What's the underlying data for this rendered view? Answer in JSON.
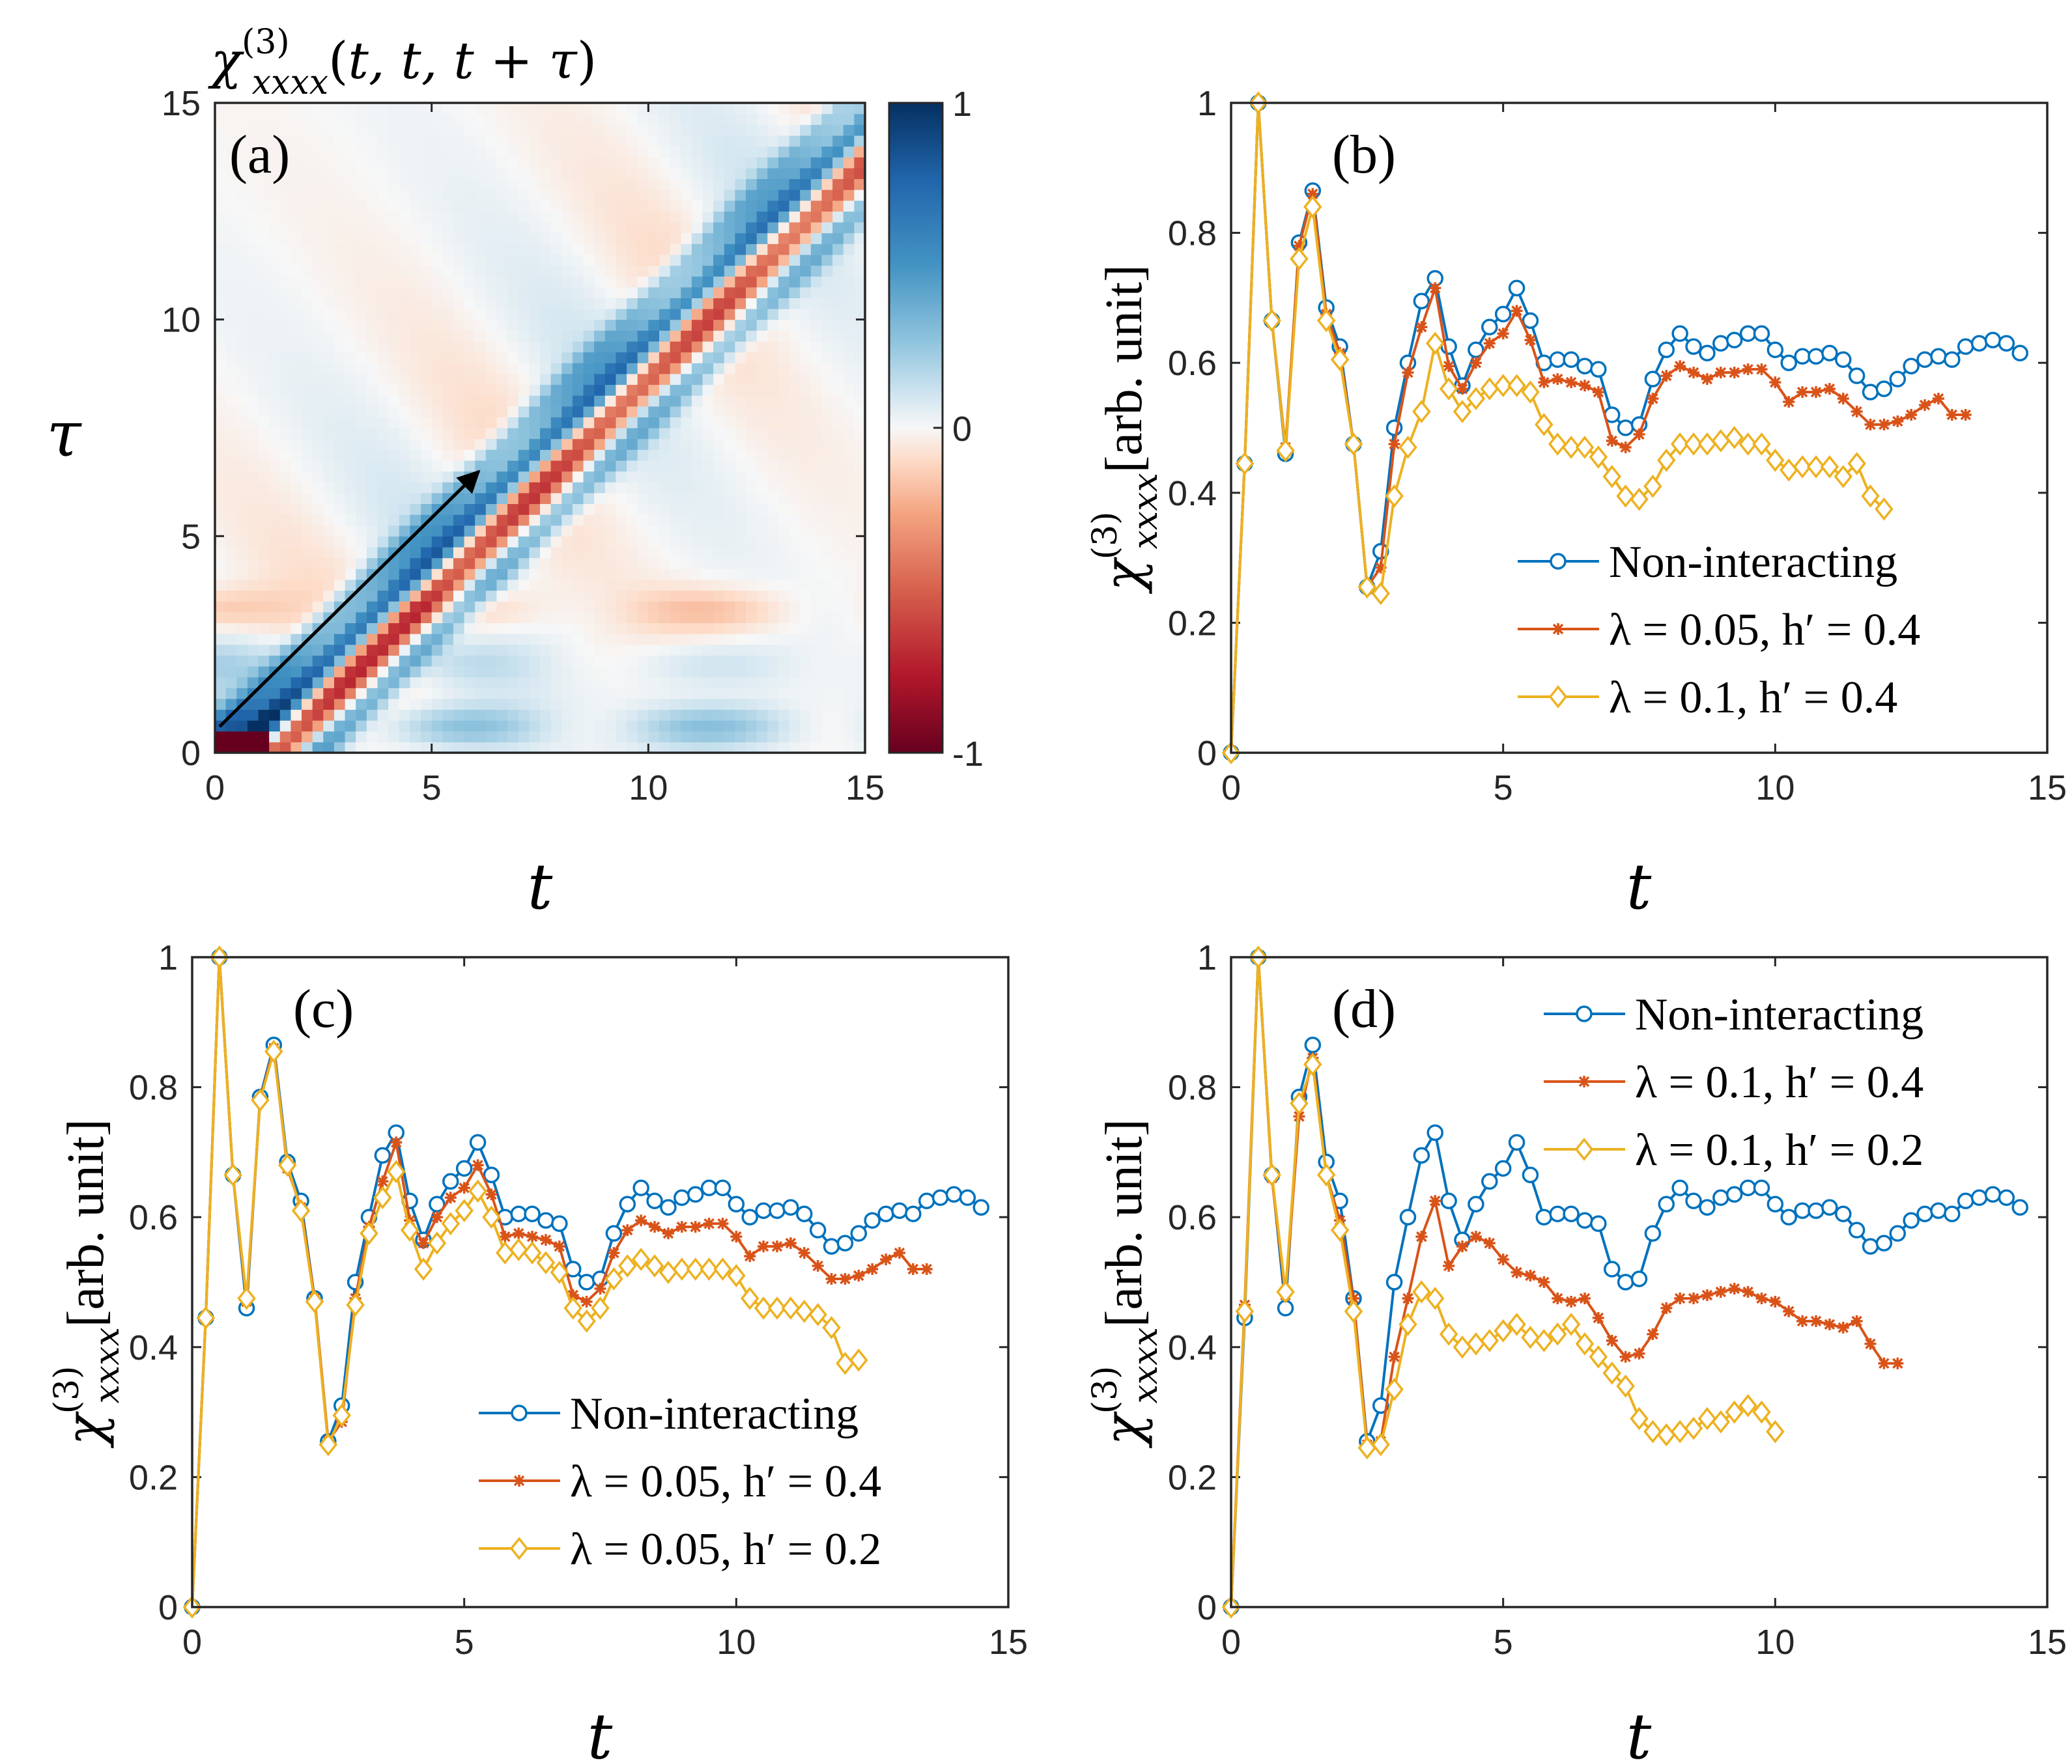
{
  "panels": {
    "a": {
      "label": "(a)",
      "title": "χ(3)xxxx(t, t, t + τ)",
      "xlabel": "t",
      "ylabel": "τ",
      "colorbar_ticks": [
        "1",
        "0",
        "-1"
      ]
    },
    "b": {
      "label": "(b)",
      "xlabel": "t",
      "ylabel": "χ(3)xxxx[arb. unit]"
    },
    "c": {
      "label": "(c)",
      "xlabel": "t",
      "ylabel": "χ(3)xxxx[arb. unit]"
    },
    "d": {
      "label": "(d)",
      "xlabel": "t",
      "ylabel": "χ(3)xxxx[arb. unit]"
    }
  },
  "colors": {
    "blue": "#0072BD",
    "orange": "#D95319",
    "yellow": "#EDB120"
  },
  "chart_data": [
    {
      "panel": "a",
      "type": "heatmap",
      "title": "χ(3)xxxx(t, t, t + τ)",
      "xlabel": "t",
      "ylabel": "τ",
      "xlim": [
        0,
        15
      ],
      "ylim": [
        0,
        15
      ],
      "xticks": [
        0,
        5,
        10,
        15
      ],
      "yticks": [
        0,
        5,
        10,
        15
      ],
      "clim": [
        -1,
        1
      ],
      "colormap": "red-white-blue",
      "features": [
        {
          "kind": "band",
          "offset": 0.4,
          "width": 0.45,
          "amplitude": 0.45
        },
        {
          "kind": "band",
          "offset": -0.45,
          "width": 0.42,
          "amplitude": 0.85
        },
        {
          "kind": "band",
          "offset": -1.4,
          "width": 0.45,
          "amplitude": -0.75
        },
        {
          "kind": "band",
          "offset": -2.4,
          "width": 0.42,
          "amplitude": 0.45
        },
        {
          "kind": "horizontal",
          "tau": 0.6,
          "amplitude": 0.3
        },
        {
          "kind": "horizontal",
          "tau": 3.3,
          "amplitude": -0.18
        },
        {
          "kind": "horizontal",
          "tau": 2.0,
          "amplitude": 0.12
        }
      ],
      "annotation": {
        "arrow_from": [
          0.1,
          0.6
        ],
        "arrow_to": [
          6.1,
          6.5
        ]
      }
    },
    {
      "panel": "b",
      "type": "line",
      "xlabel": "t",
      "ylabel": "χ(3)xxxx[arb. unit]",
      "xlim": [
        0,
        15
      ],
      "ylim": [
        0,
        1
      ],
      "xticks": [
        0,
        5,
        10,
        15
      ],
      "yticks": [
        0,
        0.2,
        0.4,
        0.6,
        0.8,
        1
      ],
      "legend_position": "lower-right",
      "series": [
        {
          "name": "Non-interacting",
          "color": "#0072BD",
          "marker": "circle",
          "y": [
            0,
            0.445,
            1,
            0.665,
            0.46,
            0.785,
            0.865,
            0.685,
            0.625,
            0.475,
            0.255,
            0.31,
            0.5,
            0.6,
            0.695,
            0.73,
            0.625,
            0.565,
            0.62,
            0.655,
            0.675,
            0.715,
            0.665,
            0.6,
            0.605,
            0.605,
            0.595,
            0.59,
            0.52,
            0.5,
            0.505,
            0.575,
            0.62,
            0.645,
            0.625,
            0.615,
            0.63,
            0.635,
            0.645,
            0.645,
            0.62,
            0.6,
            0.61,
            0.61,
            0.615,
            0.605,
            0.58,
            0.555,
            0.56,
            0.575,
            0.595,
            0.605,
            0.61,
            0.605,
            0.625,
            0.63,
            0.635,
            0.63,
            0.615
          ]
        },
        {
          "name": "λ = 0.05, h′ = 0.4",
          "color": "#D95319",
          "marker": "asterisk",
          "y": [
            0,
            0.445,
            1,
            0.665,
            0.47,
            0.78,
            0.86,
            0.675,
            0.615,
            0.475,
            0.255,
            0.285,
            0.475,
            0.585,
            0.655,
            0.715,
            0.595,
            0.56,
            0.6,
            0.63,
            0.645,
            0.68,
            0.635,
            0.57,
            0.575,
            0.57,
            0.565,
            0.555,
            0.48,
            0.47,
            0.49,
            0.545,
            0.58,
            0.595,
            0.585,
            0.575,
            0.585,
            0.585,
            0.59,
            0.59,
            0.57,
            0.54,
            0.555,
            0.555,
            0.56,
            0.545,
            0.525,
            0.505,
            0.505,
            0.51,
            0.52,
            0.535,
            0.545,
            0.52,
            0.52
          ]
        },
        {
          "name": "λ = 0.1,   h′ = 0.4",
          "color": "#EDB120",
          "marker": "diamond",
          "y": [
            0,
            0.445,
            1,
            0.665,
            0.465,
            0.76,
            0.84,
            0.665,
            0.605,
            0.475,
            0.255,
            0.245,
            0.395,
            0.47,
            0.525,
            0.63,
            0.56,
            0.525,
            0.545,
            0.56,
            0.565,
            0.565,
            0.555,
            0.505,
            0.475,
            0.47,
            0.47,
            0.455,
            0.425,
            0.395,
            0.39,
            0.41,
            0.45,
            0.475,
            0.475,
            0.475,
            0.48,
            0.485,
            0.475,
            0.475,
            0.45,
            0.435,
            0.44,
            0.44,
            0.44,
            0.425,
            0.445,
            0.395,
            0.375
          ]
        }
      ]
    },
    {
      "panel": "c",
      "type": "line",
      "xlabel": "t",
      "ylabel": "χ(3)xxxx[arb. unit]",
      "xlim": [
        0,
        15
      ],
      "ylim": [
        0,
        1
      ],
      "xticks": [
        0,
        5,
        10,
        15
      ],
      "yticks": [
        0,
        0.2,
        0.4,
        0.6,
        0.8,
        1
      ],
      "legend_position": "lower-right",
      "series": [
        {
          "name": "Non-interacting",
          "color": "#0072BD",
          "marker": "circle",
          "y": [
            0,
            0.445,
            1,
            0.665,
            0.46,
            0.785,
            0.865,
            0.685,
            0.625,
            0.475,
            0.255,
            0.31,
            0.5,
            0.6,
            0.695,
            0.73,
            0.625,
            0.565,
            0.62,
            0.655,
            0.675,
            0.715,
            0.665,
            0.6,
            0.605,
            0.605,
            0.595,
            0.59,
            0.52,
            0.5,
            0.505,
            0.575,
            0.62,
            0.645,
            0.625,
            0.615,
            0.63,
            0.635,
            0.645,
            0.645,
            0.62,
            0.6,
            0.61,
            0.61,
            0.615,
            0.605,
            0.58,
            0.555,
            0.56,
            0.575,
            0.595,
            0.605,
            0.61,
            0.605,
            0.625,
            0.63,
            0.635,
            0.63,
            0.615
          ]
        },
        {
          "name": "λ = 0.05, h′ = 0.4",
          "color": "#D95319",
          "marker": "asterisk",
          "y": [
            0,
            0.445,
            1,
            0.665,
            0.47,
            0.78,
            0.86,
            0.675,
            0.615,
            0.475,
            0.255,
            0.285,
            0.475,
            0.585,
            0.655,
            0.715,
            0.595,
            0.56,
            0.6,
            0.63,
            0.645,
            0.68,
            0.635,
            0.57,
            0.575,
            0.57,
            0.565,
            0.555,
            0.48,
            0.47,
            0.49,
            0.545,
            0.58,
            0.595,
            0.585,
            0.575,
            0.585,
            0.585,
            0.59,
            0.59,
            0.57,
            0.54,
            0.555,
            0.555,
            0.56,
            0.545,
            0.525,
            0.505,
            0.505,
            0.51,
            0.52,
            0.535,
            0.545,
            0.52,
            0.52
          ]
        },
        {
          "name": "λ = 0.05, h′ = 0.2",
          "color": "#EDB120",
          "marker": "diamond",
          "y": [
            0,
            0.445,
            1,
            0.665,
            0.475,
            0.78,
            0.855,
            0.68,
            0.61,
            0.47,
            0.25,
            0.295,
            0.465,
            0.575,
            0.63,
            0.67,
            0.58,
            0.52,
            0.56,
            0.59,
            0.61,
            0.64,
            0.6,
            0.545,
            0.55,
            0.545,
            0.53,
            0.515,
            0.46,
            0.44,
            0.46,
            0.505,
            0.525,
            0.535,
            0.525,
            0.515,
            0.52,
            0.52,
            0.52,
            0.52,
            0.51,
            0.475,
            0.46,
            0.46,
            0.46,
            0.455,
            0.45,
            0.43,
            0.375,
            0.38
          ]
        }
      ]
    },
    {
      "panel": "d",
      "type": "line",
      "xlabel": "t",
      "ylabel": "χ(3)xxxx[arb. unit]",
      "xlim": [
        0,
        15
      ],
      "ylim": [
        0,
        1
      ],
      "xticks": [
        0,
        5,
        10,
        15
      ],
      "yticks": [
        0,
        0.2,
        0.4,
        0.6,
        0.8,
        1
      ],
      "legend_position": "top-right",
      "series": [
        {
          "name": "Non-interacting",
          "color": "#0072BD",
          "marker": "circle",
          "y": [
            0,
            0.445,
            1,
            0.665,
            0.46,
            0.785,
            0.865,
            0.685,
            0.625,
            0.475,
            0.255,
            0.31,
            0.5,
            0.6,
            0.695,
            0.73,
            0.625,
            0.565,
            0.62,
            0.655,
            0.675,
            0.715,
            0.665,
            0.6,
            0.605,
            0.605,
            0.595,
            0.59,
            0.52,
            0.5,
            0.505,
            0.575,
            0.62,
            0.645,
            0.625,
            0.615,
            0.63,
            0.635,
            0.645,
            0.645,
            0.62,
            0.6,
            0.61,
            0.61,
            0.615,
            0.605,
            0.58,
            0.555,
            0.56,
            0.575,
            0.595,
            0.605,
            0.61,
            0.605,
            0.625,
            0.63,
            0.635,
            0.63,
            0.615
          ]
        },
        {
          "name": "λ = 0.1, h′ = 0.4",
          "color": "#D95319",
          "marker": "asterisk",
          "y": [
            0,
            0.465,
            1,
            0.66,
            0.48,
            0.755,
            0.845,
            0.665,
            0.595,
            0.475,
            0.25,
            0.255,
            0.385,
            0.475,
            0.57,
            0.625,
            0.525,
            0.555,
            0.57,
            0.56,
            0.535,
            0.515,
            0.51,
            0.5,
            0.475,
            0.47,
            0.475,
            0.445,
            0.41,
            0.385,
            0.39,
            0.42,
            0.46,
            0.475,
            0.475,
            0.48,
            0.485,
            0.49,
            0.485,
            0.475,
            0.47,
            0.455,
            0.44,
            0.44,
            0.435,
            0.43,
            0.44,
            0.405,
            0.375,
            0.375
          ]
        },
        {
          "name": "λ = 0.1, h′ = 0.2",
          "color": "#EDB120",
          "marker": "diamond",
          "y": [
            0,
            0.455,
            1,
            0.665,
            0.485,
            0.775,
            0.835,
            0.665,
            0.58,
            0.455,
            0.245,
            0.25,
            0.335,
            0.435,
            0.485,
            0.475,
            0.42,
            0.4,
            0.405,
            0.41,
            0.425,
            0.435,
            0.415,
            0.41,
            0.42,
            0.435,
            0.405,
            0.385,
            0.36,
            0.34,
            0.29,
            0.27,
            0.265,
            0.27,
            0.275,
            0.29,
            0.285,
            0.3,
            0.31,
            0.3,
            0.27
          ]
        }
      ]
    }
  ]
}
